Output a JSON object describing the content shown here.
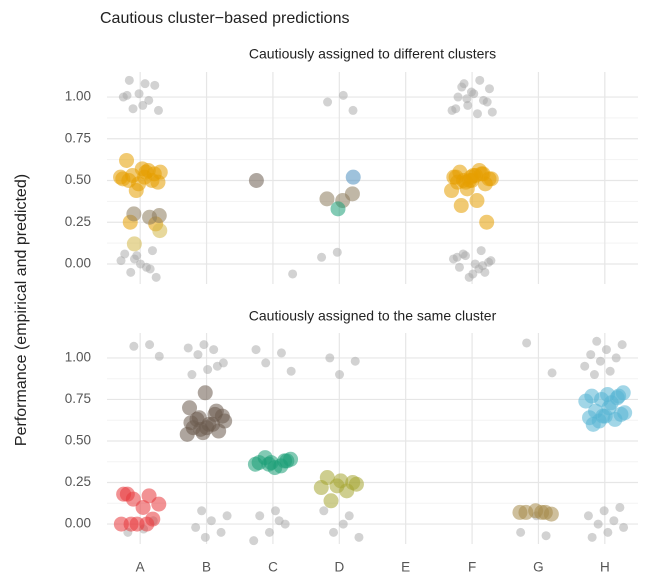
{
  "title": "Cautious cluster−based predictions",
  "y_label": "Performance (empirical and predicted)",
  "chart_data": [
    {
      "type": "scatter",
      "subtitle": "Cautiously assigned to different clusters",
      "categories": [
        "A",
        "B",
        "C",
        "D",
        "E",
        "F",
        "G",
        "H"
      ],
      "ylim": [
        -0.12,
        1.15
      ],
      "yticks": [
        {
          "value": 0,
          "label": "0.00"
        },
        {
          "value": 0.25,
          "label": "0.25"
        },
        {
          "value": 0.5,
          "label": "0.50"
        },
        {
          "value": 0.75,
          "label": "0.75"
        },
        {
          "value": 1,
          "label": "1.00"
        }
      ],
      "grid": true,
      "series": [
        {
          "color": "#a6a6a6",
          "x": [
            "A",
            "A",
            "A",
            "A",
            "A",
            "A",
            "A",
            "A",
            "A",
            "A",
            "A",
            "A",
            "A",
            "A",
            "A",
            "A",
            "A",
            "A",
            "A",
            "A",
            "C",
            "D",
            "D",
            "D",
            "D",
            "D",
            "F",
            "F",
            "F",
            "F",
            "F",
            "F",
            "F",
            "F",
            "F",
            "F",
            "F",
            "F",
            "F",
            "F",
            "F",
            "F",
            "F",
            "F",
            "F",
            "F",
            "F",
            "F",
            "F",
            "F",
            "F",
            "F",
            "F",
            "F",
            "F"
          ],
          "values": [
            1.08,
            1.1,
            1.07,
            1.02,
            1.0,
            0.98,
            0.93,
            0.92,
            0.95,
            1.01,
            0.08,
            0.05,
            0.02,
            -0.02,
            -0.05,
            -0.08,
            0.0,
            0.06,
            -0.03,
            0.03,
            -0.06,
            1.01,
            0.97,
            0.92,
            0.07,
            0.04,
            1.1,
            1.08,
            1.05,
            1.02,
            1.0,
            0.98,
            0.95,
            0.92,
            0.9,
            1.06,
            0.97,
            1.03,
            0.93,
            0.08,
            0.05,
            0.02,
            0.0,
            -0.02,
            -0.05,
            -0.08,
            0.03,
            -0.03,
            0.06,
            0.01,
            -0.06,
            0.04,
            -0.01,
            0.99,
            0.91
          ]
        },
        {
          "color": "#e69f00",
          "x": [
            "A",
            "A",
            "A",
            "A",
            "A",
            "A",
            "A",
            "A",
            "A",
            "A",
            "A",
            "A",
            "A",
            "A",
            "A",
            "A",
            "A",
            "F",
            "F",
            "F",
            "F",
            "F",
            "F",
            "F",
            "F",
            "F",
            "F",
            "F",
            "F",
            "F",
            "F",
            "F",
            "F",
            "F",
            "F",
            "F",
            "F",
            "F",
            "F"
          ],
          "values": [
            0.55,
            0.52,
            0.5,
            0.54,
            0.48,
            0.51,
            0.56,
            0.53,
            0.49,
            0.57,
            0.62,
            0.5,
            0.44,
            0.52,
            0.55,
            0.25,
            0.24,
            0.5,
            0.52,
            0.54,
            0.49,
            0.51,
            0.53,
            0.55,
            0.48,
            0.5,
            0.52,
            0.56,
            0.5,
            0.51,
            0.53,
            0.49,
            0.54,
            0.45,
            0.44,
            0.38,
            0.35,
            0.25,
            0.52
          ]
        },
        {
          "color": "#d4b84a",
          "x": [
            "A",
            "A"
          ],
          "values": [
            0.12,
            0.2
          ]
        },
        {
          "color": "#8c7b5c",
          "x": [
            "A",
            "A",
            "A",
            "D",
            "D",
            "D"
          ],
          "values": [
            0.28,
            0.3,
            0.29,
            0.38,
            0.39,
            0.42
          ]
        },
        {
          "color": "#6e5e52",
          "x": [
            "C"
          ],
          "values": [
            0.5
          ]
        },
        {
          "color": "#1b9e77",
          "x": [
            "D"
          ],
          "values": [
            0.33
          ]
        },
        {
          "color": "#4f8fbf",
          "x": [
            "D"
          ],
          "values": [
            0.52
          ]
        }
      ]
    },
    {
      "type": "scatter",
      "subtitle": "Cautiously assigned to the same cluster",
      "categories": [
        "A",
        "B",
        "C",
        "D",
        "E",
        "F",
        "G",
        "H"
      ],
      "ylim": [
        -0.12,
        1.15
      ],
      "yticks": [
        {
          "value": 0,
          "label": "0.00"
        },
        {
          "value": 0.25,
          "label": "0.25"
        },
        {
          "value": 0.5,
          "label": "0.50"
        },
        {
          "value": 0.75,
          "label": "0.75"
        },
        {
          "value": 1,
          "label": "1.00"
        }
      ],
      "grid": true,
      "series": [
        {
          "color": "#a6a6a6",
          "x": [
            "A",
            "A",
            "A",
            "A",
            "A",
            "A",
            "B",
            "B",
            "B",
            "B",
            "B",
            "B",
            "B",
            "B",
            "B",
            "B",
            "B",
            "B",
            "B",
            "B",
            "C",
            "C",
            "C",
            "C",
            "C",
            "C",
            "C",
            "C",
            "C",
            "C",
            "D",
            "D",
            "D",
            "D",
            "D",
            "D",
            "D",
            "D",
            "G",
            "G",
            "G",
            "G",
            "G",
            "H",
            "H",
            "H",
            "H",
            "H",
            "H",
            "H",
            "H",
            "H",
            "H",
            "H",
            "H",
            "H",
            "H",
            "H",
            "H",
            "H"
          ],
          "values": [
            1.08,
            1.07,
            1.01,
            -0.03,
            -0.05,
            0.02,
            1.08,
            1.06,
            1.05,
            1.02,
            0.97,
            0.93,
            0.9,
            0.95,
            0.08,
            0.05,
            0.02,
            -0.02,
            -0.05,
            -0.08,
            1.05,
            1.03,
            0.97,
            0.92,
            0.08,
            0.05,
            0.0,
            -0.05,
            -0.1,
            0.02,
            1.0,
            0.98,
            0.9,
            0.08,
            0.05,
            -0.05,
            -0.08,
            0.0,
            1.09,
            0.91,
            0.05,
            -0.05,
            -0.07,
            1.1,
            1.08,
            1.05,
            1.02,
            1.0,
            0.98,
            0.95,
            0.92,
            0.9,
            0.1,
            0.08,
            0.05,
            0.02,
            0.0,
            -0.02,
            -0.05,
            -0.08
          ]
        },
        {
          "color": "#e8383d",
          "x": [
            "A",
            "A",
            "A",
            "A",
            "A",
            "A",
            "A",
            "A",
            "A",
            "A",
            "A"
          ],
          "values": [
            0.18,
            0.17,
            0.15,
            0.12,
            0.1,
            0.18,
            0.03,
            0.0,
            0.0,
            0.0,
            0.0
          ]
        },
        {
          "color": "#6b5b4e",
          "x": [
            "B",
            "B",
            "B",
            "B",
            "B",
            "B",
            "B",
            "B",
            "B",
            "B",
            "B",
            "B",
            "B",
            "B",
            "B",
            "B",
            "B"
          ],
          "values": [
            0.79,
            0.7,
            0.66,
            0.64,
            0.62,
            0.6,
            0.58,
            0.56,
            0.55,
            0.54,
            0.6,
            0.63,
            0.65,
            0.58,
            0.61,
            0.68,
            0.57
          ]
        },
        {
          "color": "#1b9e77",
          "x": [
            "C",
            "C",
            "C",
            "C",
            "C",
            "C",
            "C",
            "C",
            "C",
            "C"
          ],
          "values": [
            0.38,
            0.37,
            0.36,
            0.35,
            0.4,
            0.39,
            0.34,
            0.37,
            0.38,
            0.36
          ]
        },
        {
          "color": "#a6a633",
          "x": [
            "D",
            "D",
            "D",
            "D",
            "D",
            "D",
            "D",
            "D"
          ],
          "values": [
            0.28,
            0.25,
            0.23,
            0.22,
            0.2,
            0.14,
            0.24,
            0.26
          ]
        },
        {
          "color": "#a68a4a",
          "x": [
            "G",
            "G",
            "G",
            "G",
            "G",
            "G"
          ],
          "values": [
            0.07,
            0.07,
            0.06,
            0.08,
            0.07,
            0.07
          ]
        },
        {
          "color": "#56b4d3",
          "x": [
            "H",
            "H",
            "H",
            "H",
            "H",
            "H",
            "H",
            "H",
            "H",
            "H",
            "H",
            "H",
            "H",
            "H",
            "H",
            "H",
            "H",
            "H"
          ],
          "values": [
            0.79,
            0.78,
            0.77,
            0.76,
            0.75,
            0.74,
            0.73,
            0.68,
            0.66,
            0.65,
            0.64,
            0.63,
            0.62,
            0.67,
            0.7,
            0.6,
            0.77,
            0.65
          ]
        }
      ]
    }
  ]
}
